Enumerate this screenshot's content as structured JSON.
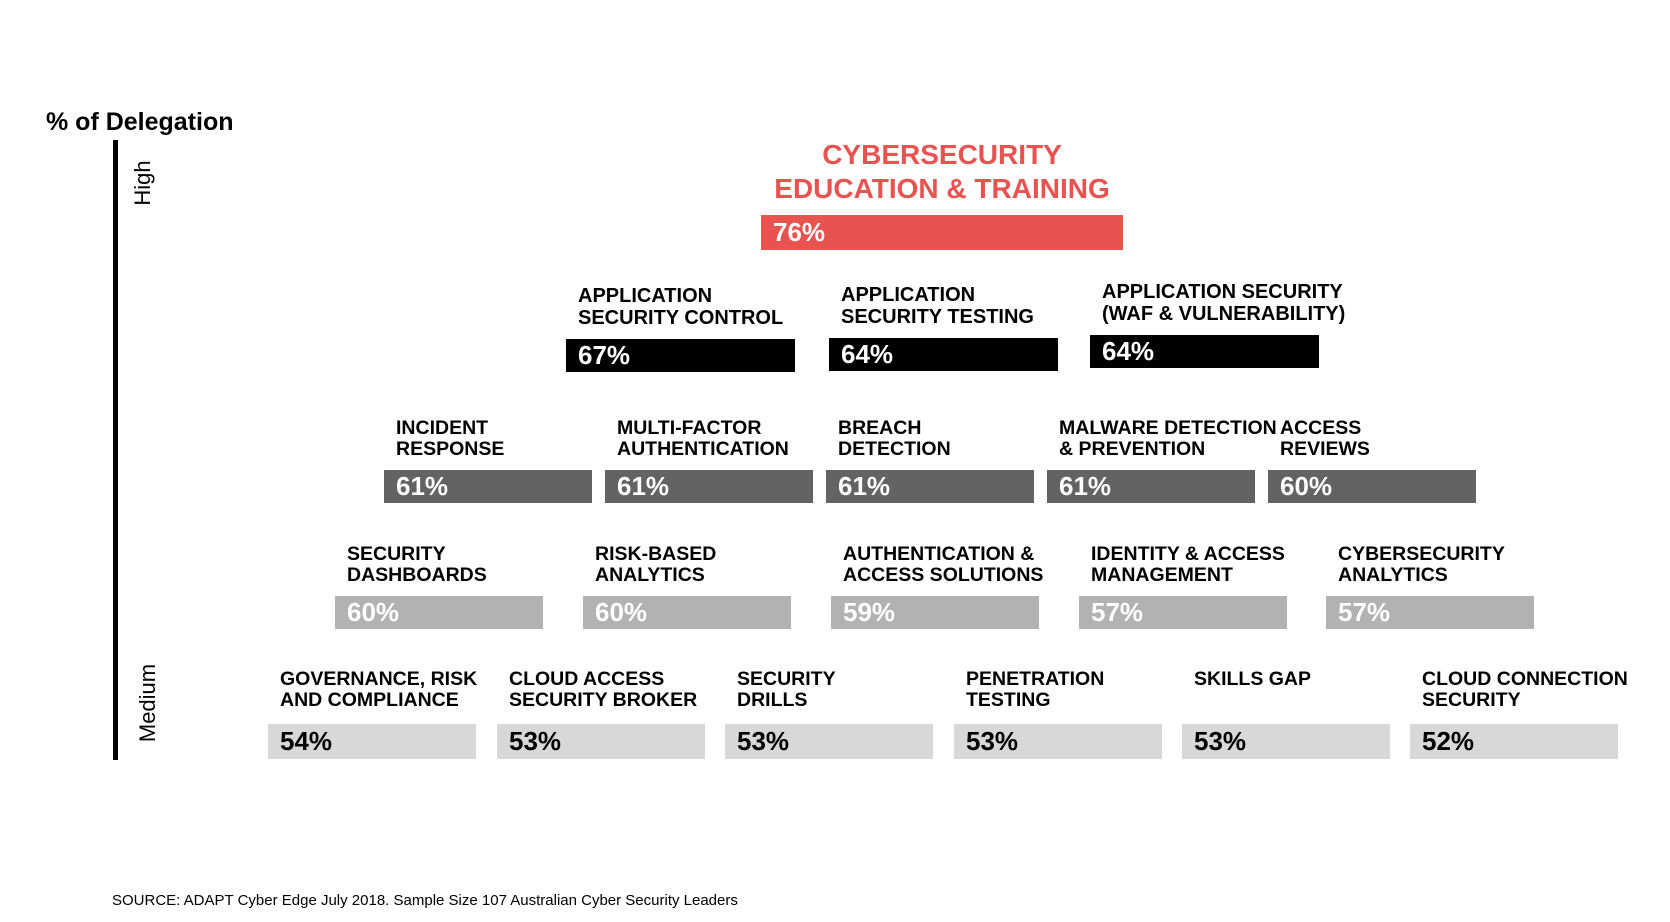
{
  "chart_data": {
    "type": "bar",
    "ylabel": "% of Delegation",
    "y_axis_levels": [
      "High",
      "Medium"
    ],
    "source": "SOURCE: ADAPT Cyber Edge July 2018. Sample Size 107 Australian Cyber Security Leaders",
    "colors": {
      "tier1": "#e85350",
      "tier2": "#000000",
      "tier3": "#636363",
      "tier4": "#b2b2b2",
      "tier5": "#d8d8d8",
      "label_tier1": "#e85350"
    },
    "tiers": [
      {
        "level": 1,
        "items": [
          {
            "label": "CYBERSECURITY\nEDUCATION & TRAINING",
            "value": 76,
            "value_label": "76%"
          }
        ]
      },
      {
        "level": 2,
        "items": [
          {
            "label": "APPLICATION\nSECURITY CONTROL",
            "value": 67,
            "value_label": "67%"
          },
          {
            "label": "APPLICATION\nSECURITY TESTING",
            "value": 64,
            "value_label": "64%"
          },
          {
            "label": "APPLICATION SECURITY\n(WAF & VULNERABILITY)",
            "value": 64,
            "value_label": "64%"
          }
        ]
      },
      {
        "level": 3,
        "items": [
          {
            "label": "INCIDENT\nRESPONSE",
            "value": 61,
            "value_label": "61%"
          },
          {
            "label": "MULTI-FACTOR\nAUTHENTICATION",
            "value": 61,
            "value_label": "61%"
          },
          {
            "label": "BREACH\nDETECTION",
            "value": 61,
            "value_label": "61%"
          },
          {
            "label": "MALWARE DETECTION\n& PREVENTION",
            "value": 61,
            "value_label": "61%"
          },
          {
            "label": "ACCESS\nREVIEWS",
            "value": 60,
            "value_label": "60%"
          }
        ]
      },
      {
        "level": 4,
        "items": [
          {
            "label": "SECURITY\nDASHBOARDS",
            "value": 60,
            "value_label": "60%"
          },
          {
            "label": "RISK-BASED\nANALYTICS",
            "value": 60,
            "value_label": "60%"
          },
          {
            "label": "AUTHENTICATION &\nACCESS SOLUTIONS",
            "value": 59,
            "value_label": "59%"
          },
          {
            "label": "IDENTITY & ACCESS\nMANAGEMENT",
            "value": 57,
            "value_label": "57%"
          },
          {
            "label": "CYBERSECURITY\nANALYTICS",
            "value": 57,
            "value_label": "57%"
          }
        ]
      },
      {
        "level": 5,
        "items": [
          {
            "label": "GOVERNANCE, RISK\nAND COMPLIANCE",
            "value": 54,
            "value_label": "54%"
          },
          {
            "label": "CLOUD ACCESS\nSECURITY BROKER",
            "value": 53,
            "value_label": "53%"
          },
          {
            "label": "SECURITY\nDRILLS",
            "value": 53,
            "value_label": "53%"
          },
          {
            "label": "PENETRATION\nTESTING",
            "value": 53,
            "value_label": "53%"
          },
          {
            "label": "SKILLS GAP",
            "value": 53,
            "value_label": "53%"
          },
          {
            "label": "CLOUD CONNECTION\nSECURITY",
            "value": 52,
            "value_label": "52%"
          }
        ]
      }
    ]
  }
}
